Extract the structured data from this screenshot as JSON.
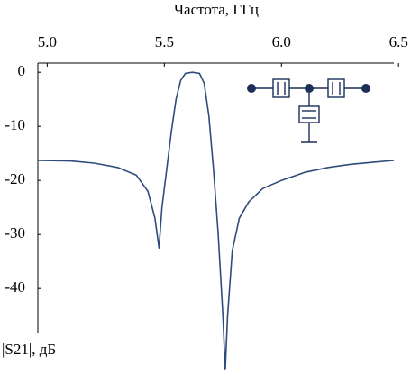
{
  "chart_data": {
    "type": "line",
    "x_label": "Частота, ГГц",
    "y_label": "|S21|, дБ",
    "x": [
      4.96,
      5.1,
      5.2,
      5.3,
      5.38,
      5.43,
      5.46,
      5.477,
      5.49,
      5.51,
      5.53,
      5.55,
      5.57,
      5.59,
      5.62,
      5.65,
      5.67,
      5.69,
      5.71,
      5.73,
      5.75,
      5.76,
      5.77,
      5.79,
      5.82,
      5.86,
      5.92,
      6.0,
      6.1,
      6.2,
      6.3,
      6.4,
      6.48
    ],
    "series": [
      {
        "color": "#2f4b7c",
        "values": [
          -16.3,
          -16.4,
          -16.8,
          -17.6,
          -19,
          -22,
          -27,
          -32.5,
          -25,
          -18,
          -11,
          -5,
          -1.5,
          -0.2,
          0,
          -0.2,
          -2,
          -8,
          -18,
          -30,
          -45,
          -55,
          -45,
          -33,
          -27,
          -24,
          -21.5,
          -20,
          -18.5,
          -17.6,
          -17,
          -16.6,
          -16.3
        ]
      }
    ],
    "xlim": [
      4.96,
      6.48
    ],
    "ylim": [
      -55.8,
      1.7
    ],
    "xticks": [
      {
        "value": 5,
        "label": "5.0"
      },
      5.5,
      {
        "value": 6,
        "label": "6.0"
      },
      6.5
    ],
    "yticks": [
      0,
      -10,
      -20,
      -30,
      -40
    ]
  }
}
